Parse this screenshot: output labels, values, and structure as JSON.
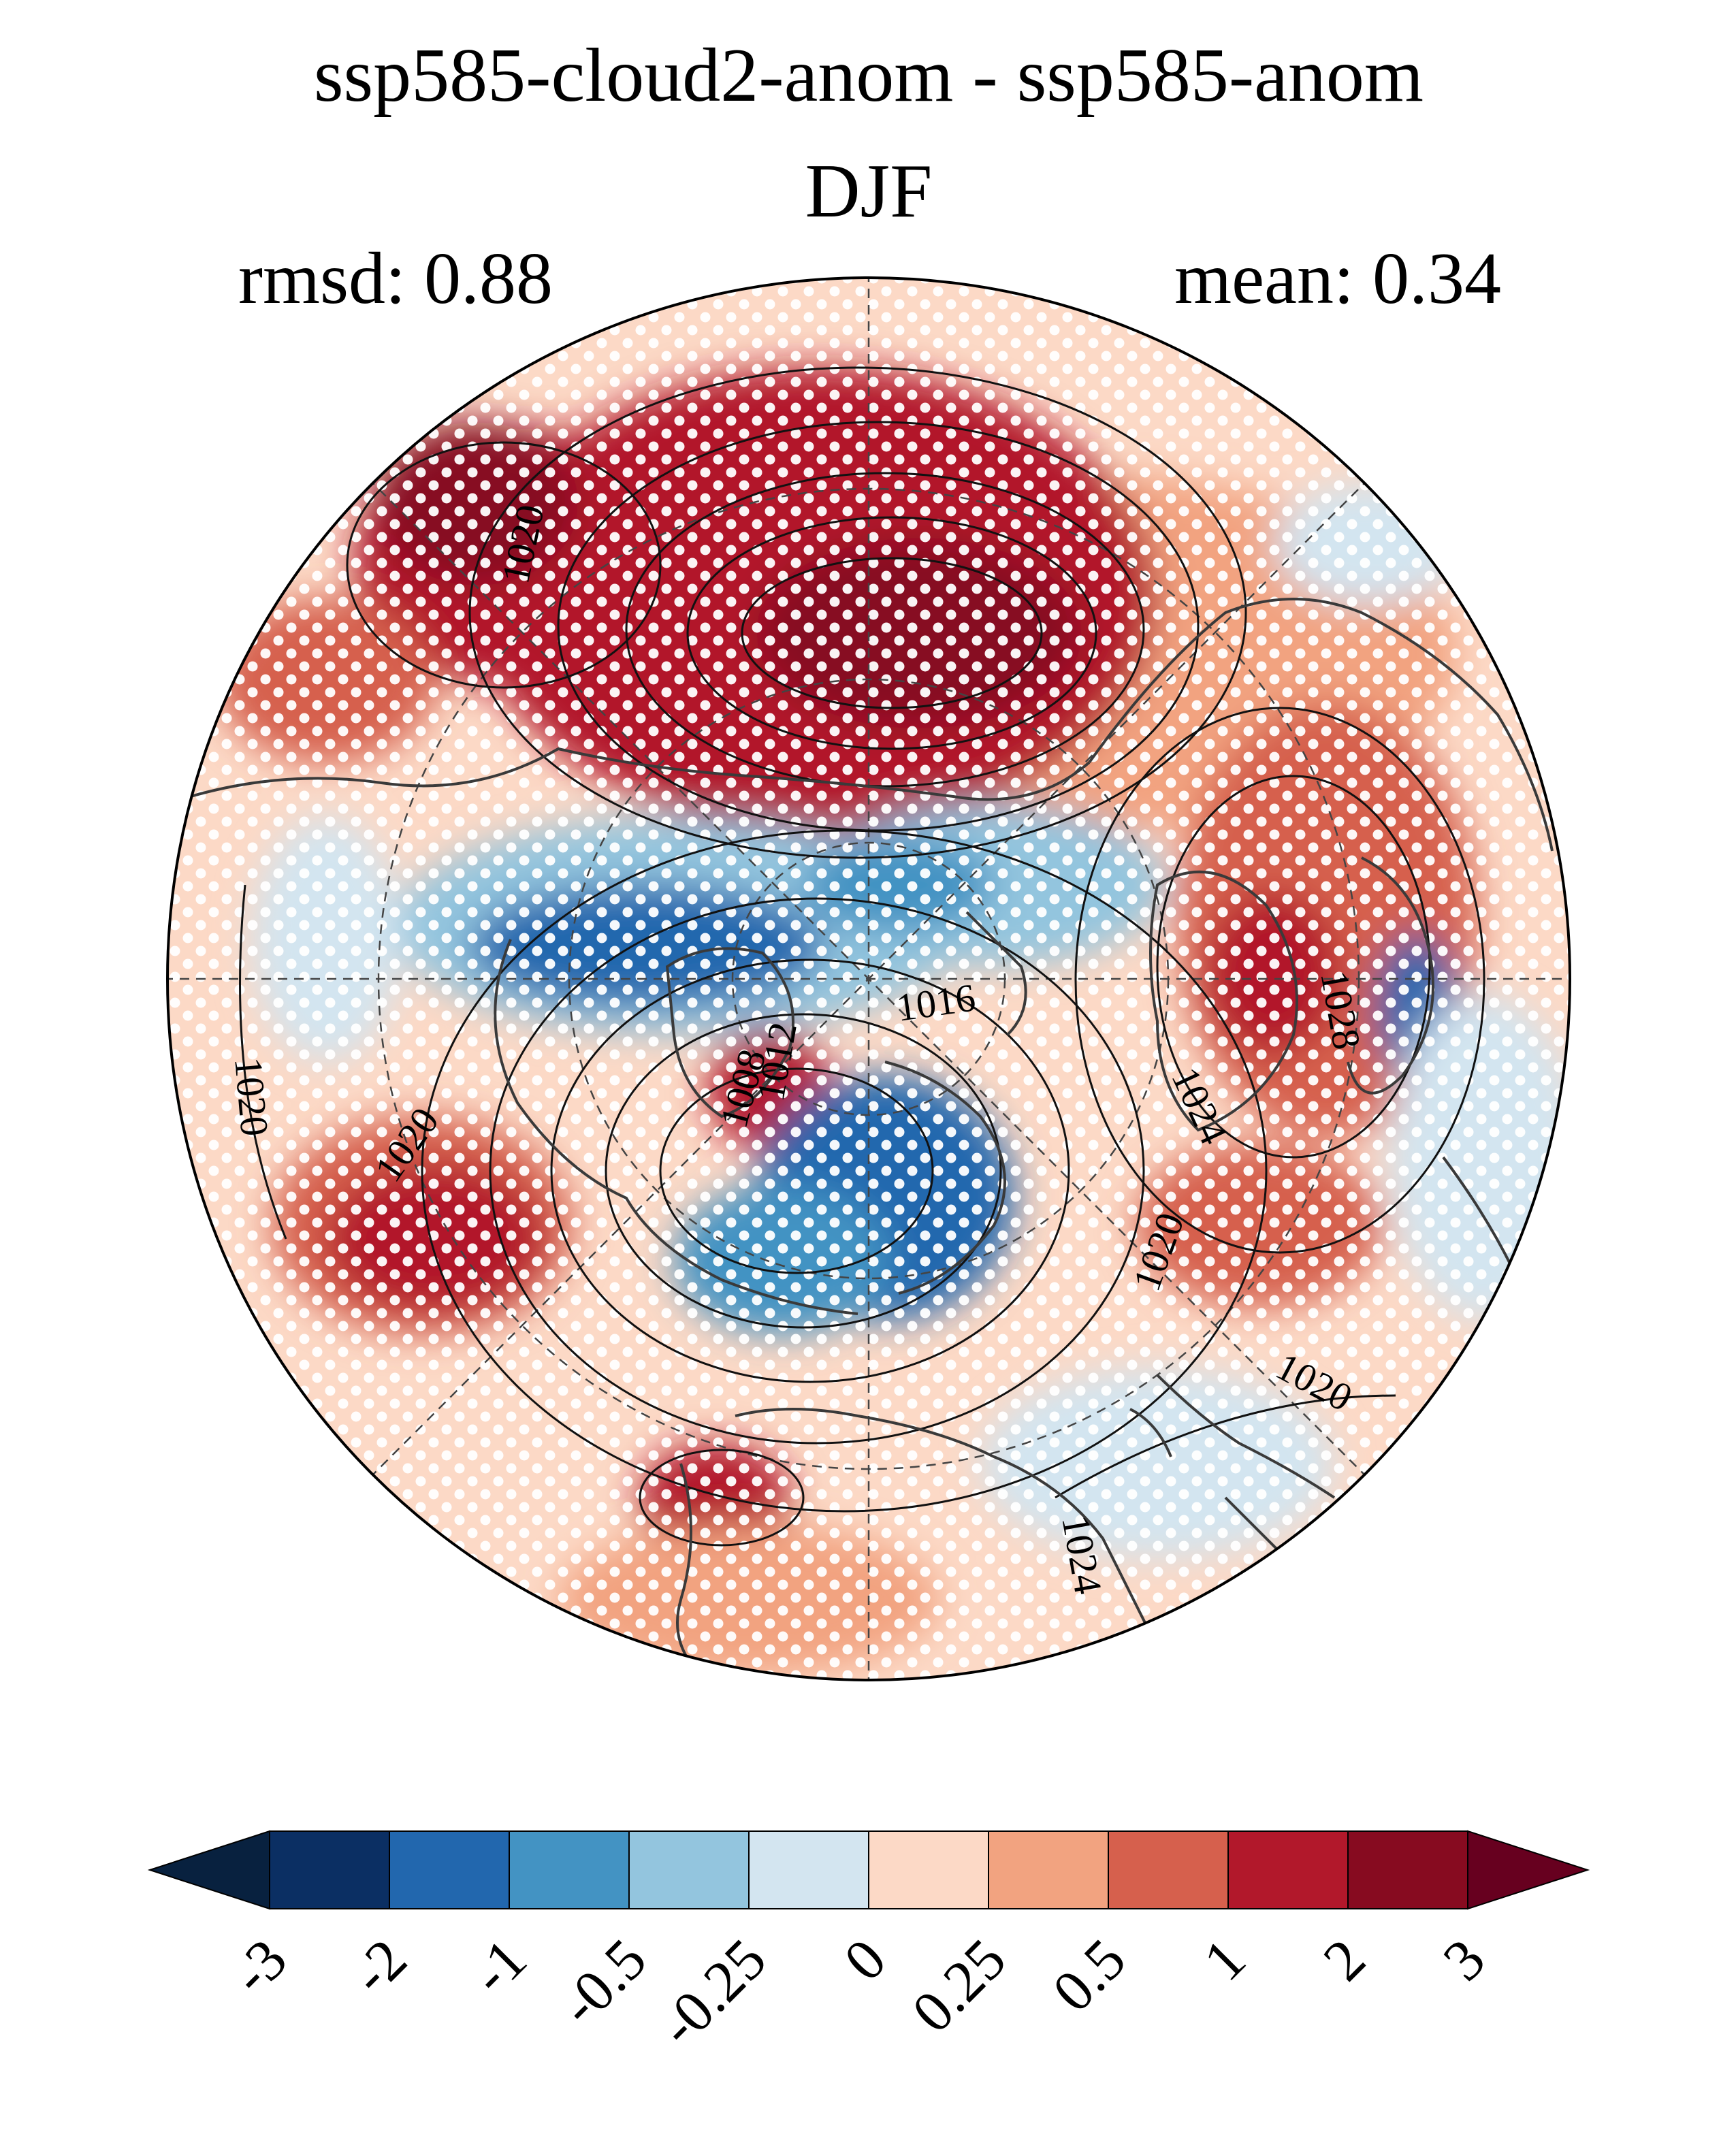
{
  "title": "ssp585-cloud2-anom - ssp585-anom",
  "season": "DJF",
  "stats": {
    "rmsd_label": "rmsd: 0.88",
    "mean_label": "mean: 0.34"
  },
  "map": {
    "projection": "north polar stereographic",
    "contour_labels": [
      "1020",
      "1020",
      "1020",
      "1016",
      "1008",
      "1012",
      "1024",
      "1020",
      "1024",
      "1028",
      "1020",
      "1024"
    ],
    "stippling": "white dots mark significant regions"
  },
  "colorbar": {
    "ticks": [
      "-3",
      "-2",
      "-1",
      "-0.5",
      "-0.25",
      "0",
      "0.25",
      "0.5",
      "1",
      "2",
      "3"
    ],
    "colors": [
      "#08213f",
      "#0b2f63",
      "#2267ae",
      "#4393c3",
      "#93c5de",
      "#d3e5f0",
      "#fcd9c6",
      "#f2a380",
      "#d6604d",
      "#b2182b",
      "#870b20",
      "#67001f"
    ],
    "extend": "both"
  }
}
